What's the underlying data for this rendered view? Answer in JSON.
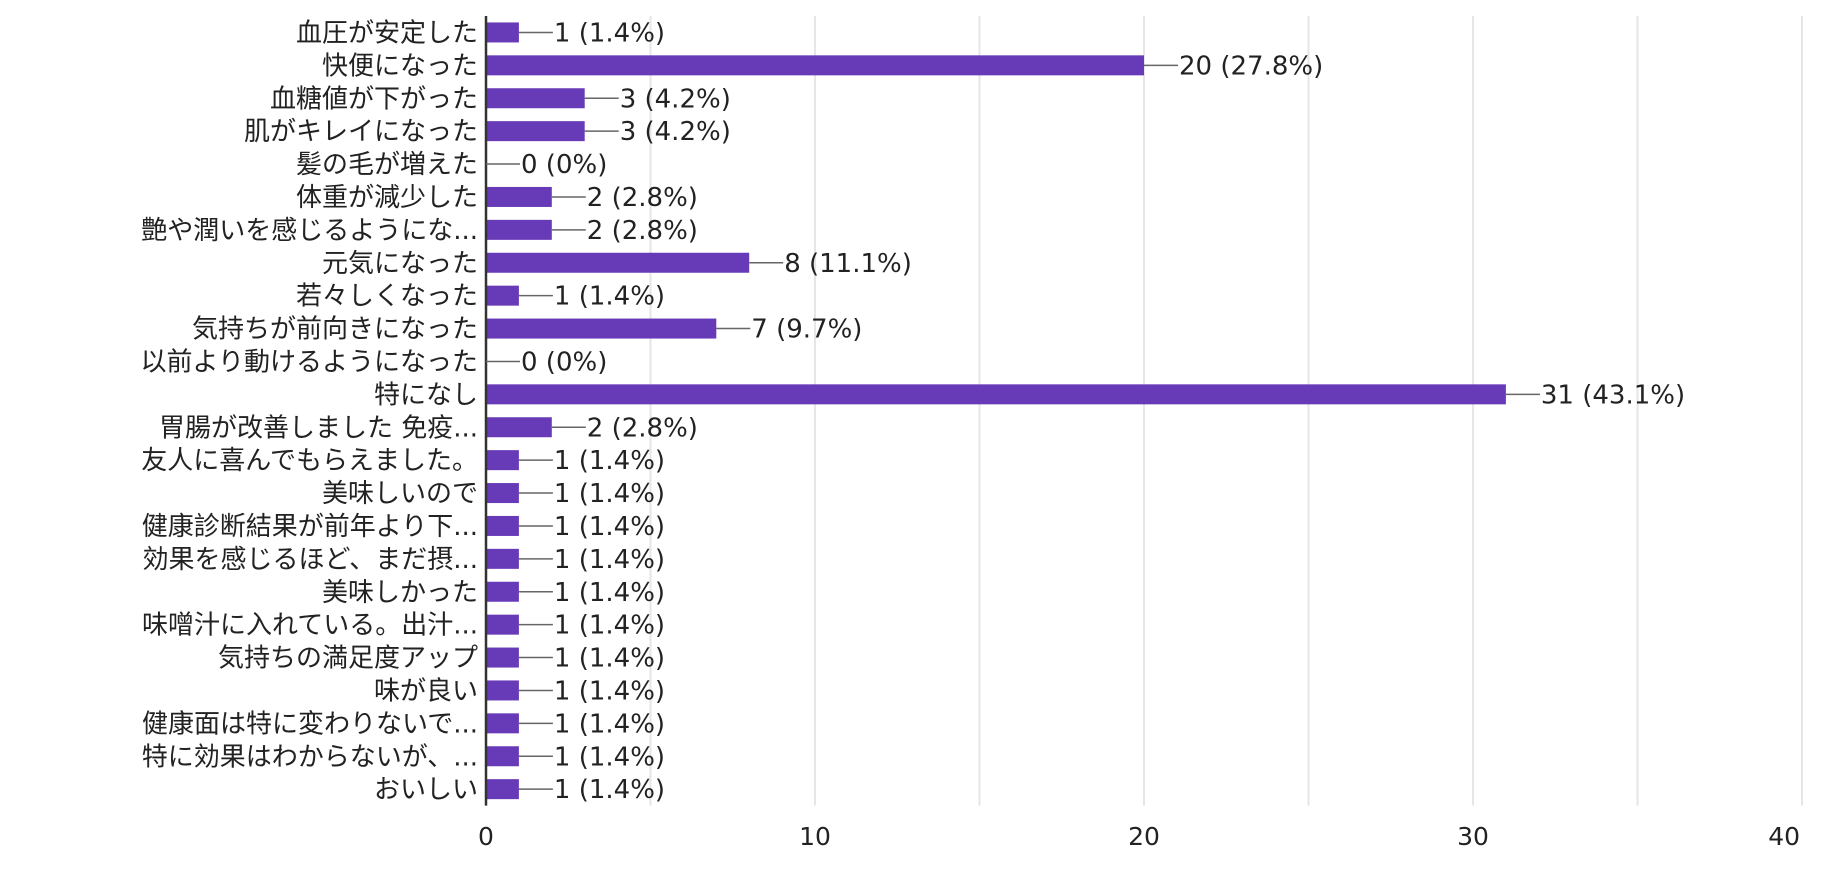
{
  "chart_data": {
    "type": "bar",
    "orientation": "horizontal",
    "title": "",
    "xlabel": "",
    "ylabel": "",
    "xlim": [
      0,
      40
    ],
    "ticks": [
      "0",
      "10",
      "20",
      "30",
      "40"
    ],
    "grid": true,
    "bar_color": "#673ab7",
    "categories": [
      "血圧が安定した",
      "快便になった",
      "血糖値が下がった",
      "肌がキレイになった",
      "髪の毛が増えた",
      "体重が減少した",
      "艶や潤いを感じるようにな...",
      "元気になった",
      "若々しくなった",
      "気持ちが前向きになった",
      "以前より動けるようになった",
      "特になし",
      "胃腸が改善しました 免疫...",
      "友人に喜んでもらえました。",
      "美味しいので",
      "健康診断結果が前年より下...",
      "効果を感じるほど、まだ摂...",
      "美味しかった",
      "味噌汁に入れている。出汁...",
      "気持ちの満足度アップ",
      "味が良い",
      "健康面は特に変わりないで...",
      "特に効果はわからないが、...",
      "おいしい"
    ],
    "values": [
      1,
      20,
      3,
      3,
      0,
      2,
      2,
      8,
      1,
      7,
      0,
      31,
      2,
      1,
      1,
      1,
      1,
      1,
      1,
      1,
      1,
      1,
      1,
      1
    ],
    "data_labels": [
      "1 (1.4%)",
      "20 (27.8%)",
      "3 (4.2%)",
      "3 (4.2%)",
      "0 (0%)",
      "2 (2.8%)",
      "2 (2.8%)",
      "8 (11.1%)",
      "1 (1.4%)",
      "7 (9.7%)",
      "0 (0%)",
      "31 (43.1%)",
      "2 (2.8%)",
      "1 (1.4%)",
      "1 (1.4%)",
      "1 (1.4%)",
      "1 (1.4%)",
      "1 (1.4%)",
      "1 (1.4%)",
      "1 (1.4%)",
      "1 (1.4%)",
      "1 (1.4%)",
      "1 (1.4%)",
      "1 (1.4%)"
    ]
  }
}
